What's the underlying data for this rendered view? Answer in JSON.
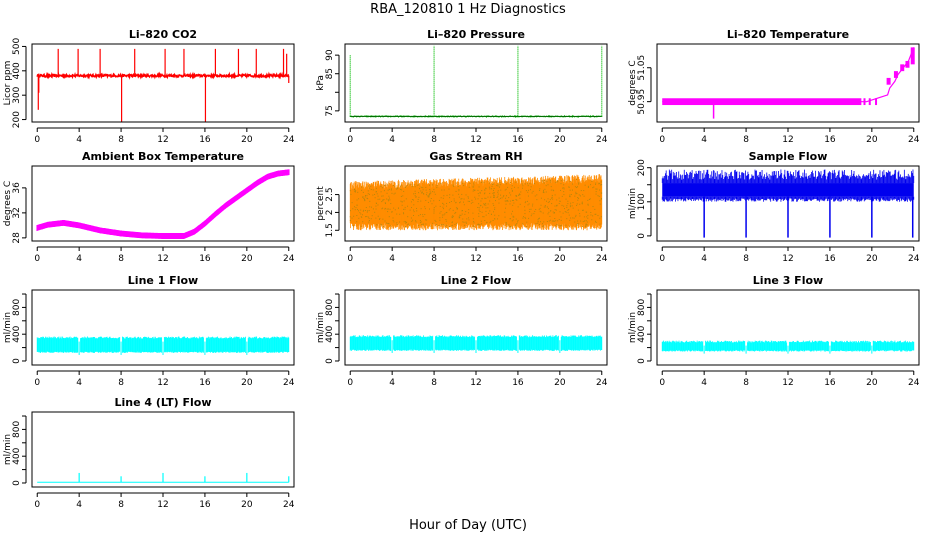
{
  "figure": {
    "title": "RBA_120810  1 Hz Diagnostics",
    "xlabel": "Hour of Day (UTC)"
  },
  "colors": {
    "co2": "#ff0000",
    "pressure": "#00bb00",
    "temperature": "#ff00ff",
    "ambient": "#ff00ff",
    "rh": "#ff8c00",
    "rh_points": "#b8860b",
    "sample_flow": "#0000ee",
    "line_flow": "#00ffff"
  },
  "chart_data": [
    {
      "id": "co2",
      "type": "line",
      "title": "Li–820 CO2",
      "ylabel": "Licor ppm",
      "ylim": [
        190,
        510
      ],
      "yticks": [
        200,
        300,
        400,
        500
      ],
      "ytick_labels": [
        "200",
        "300",
        "400",
        "500"
      ],
      "xlim": [
        -0.5,
        24.5
      ],
      "xticks": [
        0,
        4,
        8,
        12,
        16,
        20,
        24
      ],
      "baseline": 380,
      "noise": 10,
      "color_key": "co2",
      "spikes": [
        [
          0.1,
          240
        ],
        [
          0.15,
          310
        ],
        [
          2.0,
          490
        ],
        [
          3.9,
          490
        ],
        [
          6.0,
          490
        ],
        [
          8.05,
          190
        ],
        [
          9.3,
          490
        ],
        [
          12.2,
          490
        ],
        [
          14.0,
          490
        ],
        [
          16.05,
          190
        ],
        [
          17.0,
          490
        ],
        [
          19.2,
          490
        ],
        [
          20.9,
          490
        ],
        [
          23.5,
          490
        ],
        [
          23.8,
          470
        ],
        [
          24,
          350
        ]
      ],
      "series": [
        {
          "name": "CO2",
          "x": [
            0,
            24
          ],
          "y": [
            380,
            380
          ]
        }
      ]
    },
    {
      "id": "pressure",
      "type": "line",
      "title": "Li–820 Pressure",
      "ylabel": "kPa",
      "ylim": [
        72,
        93
      ],
      "yticks": [
        75,
        80,
        85,
        90
      ],
      "ytick_labels": [
        "75",
        "",
        "85",
        "90"
      ],
      "xlim": [
        -0.5,
        24.5
      ],
      "xticks": [
        0,
        4,
        8,
        12,
        16,
        20,
        24
      ],
      "baseline": 73.5,
      "noise": 0.3,
      "color_key": "pressure",
      "spikes": [
        [
          0.0,
          90
        ],
        [
          8.0,
          92.5
        ],
        [
          16.0,
          92.5
        ],
        [
          24.0,
          92.5
        ]
      ],
      "series": [
        {
          "name": "Pressure",
          "x": [
            0,
            24
          ],
          "y": [
            73.5,
            73.5
          ]
        }
      ]
    },
    {
      "id": "temperature",
      "type": "line",
      "title": "Li–820 Temperature",
      "ylabel": "degrees C",
      "ylim": [
        50.89,
        51.12
      ],
      "yticks": [
        50.95,
        51.05
      ],
      "ytick_labels": [
        "50.95",
        "51.05"
      ],
      "xlim": [
        -0.5,
        24.5
      ],
      "xticks": [
        0,
        4,
        8,
        12,
        16,
        20,
        24
      ],
      "band": [
        50.94,
        50.96
      ],
      "color_key": "temperature",
      "series": [
        {
          "name": "Temperature",
          "x": [
            0,
            19,
            19.5,
            20.5,
            21.5,
            21.7,
            22.2,
            22.5,
            23.0,
            23.5,
            24
          ],
          "y": [
            50.95,
            50.95,
            50.95,
            50.96,
            50.97,
            50.99,
            51.01,
            51.03,
            51.05,
            51.07,
            51.11
          ]
        }
      ]
    },
    {
      "id": "ambient",
      "type": "line",
      "title": "Ambient Box Temperature",
      "ylabel": "degrees C",
      "ylim": [
        27.5,
        39.5
      ],
      "yticks": [
        28,
        32,
        36
      ],
      "ytick_labels": [
        "28",
        "32",
        "36"
      ],
      "xlim": [
        -0.5,
        24.5
      ],
      "xticks": [
        0,
        4,
        8,
        12,
        16,
        20,
        24
      ],
      "noise": 0.35,
      "color_key": "ambient",
      "series": [
        {
          "name": "Ambient",
          "x": [
            0,
            1,
            2.5,
            4,
            6,
            8,
            10,
            12,
            14,
            15,
            16,
            17,
            18,
            19,
            20,
            21,
            22,
            23,
            24
          ],
          "y": [
            29.6,
            30.1,
            30.4,
            30.0,
            29.2,
            28.7,
            28.4,
            28.3,
            28.3,
            29.0,
            30.3,
            31.8,
            33.2,
            34.4,
            35.6,
            36.8,
            37.8,
            38.3,
            38.5
          ]
        }
      ]
    },
    {
      "id": "rh",
      "type": "line",
      "title": "Gas Stream RH",
      "ylabel": "percent",
      "ylim": [
        1.2,
        3.3
      ],
      "yticks": [
        1.5,
        2.0,
        2.5
      ],
      "ytick_labels": [
        "1.5",
        "2",
        "2.5"
      ],
      "xlim": [
        -0.5,
        24.5
      ],
      "xticks": [
        0,
        4,
        8,
        12,
        16,
        20,
        24
      ],
      "band_low": [
        1.6,
        1.6
      ],
      "band_high": [
        2.75,
        2.95
      ],
      "color_key": "rh",
      "series": [
        {
          "name": "RH",
          "x": [
            0,
            24
          ],
          "y": [
            2.2,
            2.3
          ]
        }
      ]
    },
    {
      "id": "sample_flow",
      "type": "line",
      "title": "Sample Flow",
      "ylabel": "ml/min",
      "ylim": [
        -15,
        205
      ],
      "yticks": [
        0,
        50,
        100,
        150,
        200
      ],
      "ytick_labels": [
        "0",
        "",
        "100",
        "",
        "200"
      ],
      "xlim": [
        -0.5,
        24.5
      ],
      "xticks": [
        0,
        4,
        8,
        12,
        16,
        20,
        24
      ],
      "band": [
        115,
        155
      ],
      "color_key": "sample_flow",
      "dips": [
        4.0,
        8.0,
        12.0,
        16.0,
        20.0,
        23.9
      ],
      "series": [
        {
          "name": "Sample Flow",
          "x": [
            0,
            24
          ],
          "y": [
            140,
            140
          ]
        }
      ]
    },
    {
      "id": "line1",
      "type": "line",
      "title": "Line 1 Flow",
      "ylabel": "ml/min",
      "ylim": [
        -60,
        1060
      ],
      "yticks": [
        0,
        200,
        400,
        600,
        800,
        1000
      ],
      "ytick_labels": [
        "0",
        "",
        "400",
        "",
        "800",
        ""
      ],
      "xlim": [
        -0.5,
        24.5
      ],
      "xticks": [
        0,
        4,
        8,
        12,
        16,
        20,
        24
      ],
      "band": [
        130,
        350
      ],
      "color_key": "line_flow",
      "gaps": [
        4,
        8,
        12,
        16,
        20
      ],
      "series": [
        {
          "name": "Line 1",
          "x": [
            0,
            24
          ],
          "y": [
            240,
            240
          ]
        }
      ]
    },
    {
      "id": "line2",
      "type": "line",
      "title": "Line 2 Flow",
      "ylabel": "ml/min",
      "ylim": [
        -60,
        1060
      ],
      "yticks": [
        0,
        200,
        400,
        600,
        800,
        1000
      ],
      "ytick_labels": [
        "0",
        "",
        "400",
        "",
        "800",
        ""
      ],
      "xlim": [
        -0.5,
        24.5
      ],
      "xticks": [
        0,
        4,
        8,
        12,
        16,
        20,
        24
      ],
      "band": [
        160,
        370
      ],
      "color_key": "line_flow",
      "gaps": [
        4,
        8,
        12,
        16,
        20
      ],
      "series": [
        {
          "name": "Line 2",
          "x": [
            0,
            24
          ],
          "y": [
            270,
            270
          ]
        }
      ]
    },
    {
      "id": "line3",
      "type": "line",
      "title": "Line 3 Flow",
      "ylabel": "ml/min",
      "ylim": [
        -60,
        1060
      ],
      "yticks": [
        0,
        200,
        400,
        600,
        800,
        1000
      ],
      "ytick_labels": [
        "0",
        "",
        "400",
        "",
        "800",
        ""
      ],
      "xlim": [
        -0.5,
        24.5
      ],
      "xticks": [
        0,
        4,
        8,
        12,
        16,
        20,
        24
      ],
      "band": [
        150,
        290
      ],
      "color_key": "line_flow",
      "gaps": [
        4,
        8,
        12,
        16,
        20
      ],
      "series": [
        {
          "name": "Line 3",
          "x": [
            0,
            24
          ],
          "y": [
            220,
            220
          ]
        }
      ]
    },
    {
      "id": "line4",
      "type": "line",
      "title": "Line 4 (LT) Flow",
      "ylabel": "ml/min",
      "ylim": [
        -60,
        1060
      ],
      "yticks": [
        0,
        200,
        400,
        600,
        800,
        1000
      ],
      "ytick_labels": [
        "0",
        "",
        "400",
        "",
        "800",
        ""
      ],
      "xlim": [
        -0.5,
        24.5
      ],
      "xticks": [
        0,
        4,
        8,
        12,
        16,
        20,
        24
      ],
      "baseline": 10,
      "color_key": "line_flow",
      "spikes": [
        [
          4.0,
          150
        ],
        [
          8.0,
          100
        ],
        [
          12.0,
          150
        ],
        [
          16.0,
          100
        ],
        [
          20.0,
          150
        ],
        [
          24.0,
          100
        ]
      ],
      "series": [
        {
          "name": "Line 4",
          "x": [
            0,
            24
          ],
          "y": [
            10,
            10
          ]
        }
      ]
    }
  ]
}
